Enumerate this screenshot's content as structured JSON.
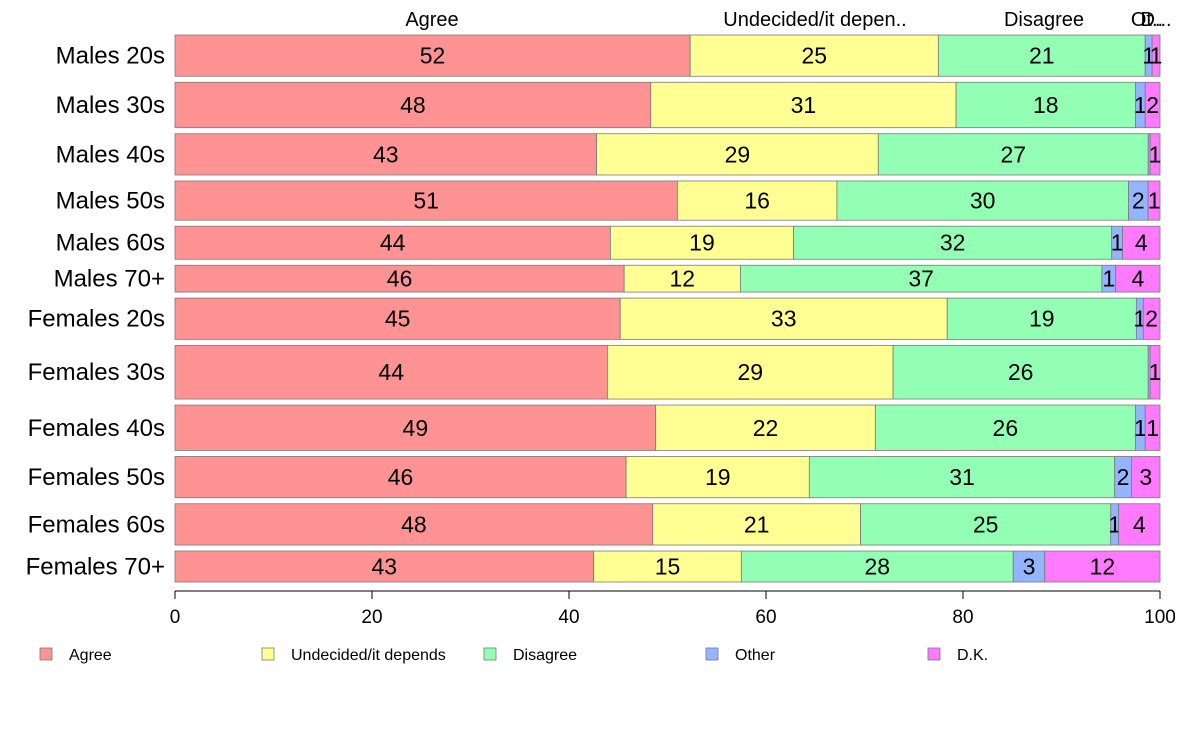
{
  "chart_data": {
    "type": "bar",
    "orientation": "horizontal",
    "stacked": true,
    "title": "",
    "xlabel": "",
    "ylabel": "",
    "xlim": [
      0,
      100
    ],
    "x_ticks": [
      "0",
      "20",
      "40",
      "60",
      "80",
      "100"
    ],
    "top_labels": [
      "Agree",
      "Undecided/it depen..",
      "Disagree",
      "Ot..",
      "D..."
    ],
    "categories": [
      "Males 20s",
      "Males 30s",
      "Males 40s",
      "Males 50s",
      "Males 60s",
      "Males 70+",
      "Females 20s",
      "Females 30s",
      "Females 40s",
      "Females 50s",
      "Females 60s",
      "Females 70+"
    ],
    "row_weights": [
      1.0,
      1.1,
      1.0,
      0.95,
      0.8,
      0.65,
      1.0,
      1.3,
      1.1,
      1.0,
      1.0,
      0.75
    ],
    "series": [
      {
        "name": "Agree",
        "color": "#ff9393",
        "values": [
          52.3,
          48.3,
          42.8,
          51.0,
          44.2,
          45.6,
          45.2,
          43.9,
          48.8,
          45.8,
          48.5,
          42.5
        ]
      },
      {
        "name": "Undecided/it depends",
        "color": "#ffff93",
        "values": [
          25.2,
          31.0,
          28.6,
          16.2,
          18.6,
          11.8,
          33.2,
          29.0,
          22.3,
          18.6,
          21.1,
          15.0
        ]
      },
      {
        "name": "Disagree",
        "color": "#93ffb5",
        "values": [
          21.0,
          18.2,
          27.4,
          29.6,
          32.3,
          36.7,
          19.2,
          25.9,
          26.4,
          31.0,
          25.4,
          27.6
        ]
      },
      {
        "name": "Other",
        "color": "#93b5ff",
        "values": [
          0.7,
          1.0,
          0.2,
          2.0,
          1.1,
          1.4,
          0.7,
          0.2,
          1.0,
          1.7,
          0.8,
          3.2
        ]
      },
      {
        "name": "D.K.",
        "color": "#ff7aff",
        "values": [
          0.8,
          1.5,
          1.0,
          1.2,
          3.8,
          4.5,
          1.7,
          1.0,
          1.5,
          2.9,
          4.2,
          11.7
        ]
      }
    ],
    "data_labels": [
      [
        "52",
        "25",
        "21",
        "1",
        "1"
      ],
      [
        "48",
        "31",
        "18",
        "1",
        "2"
      ],
      [
        "43",
        "29",
        "27",
        "",
        "1"
      ],
      [
        "51",
        "16",
        "30",
        "2",
        "1"
      ],
      [
        "44",
        "19",
        "32",
        "1",
        "4"
      ],
      [
        "46",
        "12",
        "37",
        "1",
        "4"
      ],
      [
        "45",
        "33",
        "19",
        "1",
        "2"
      ],
      [
        "44",
        "29",
        "26",
        "",
        "1"
      ],
      [
        "49",
        "22",
        "26",
        "1",
        "1"
      ],
      [
        "46",
        "19",
        "31",
        "2",
        "3"
      ],
      [
        "48",
        "21",
        "25",
        "1",
        "4"
      ],
      [
        "43",
        "15",
        "28",
        "3",
        "12"
      ]
    ],
    "legend": {
      "placement": "bottom",
      "entries": [
        "Agree",
        "Undecided/it depends",
        "Disagree",
        "Other",
        "D.K."
      ]
    },
    "grid": false
  }
}
